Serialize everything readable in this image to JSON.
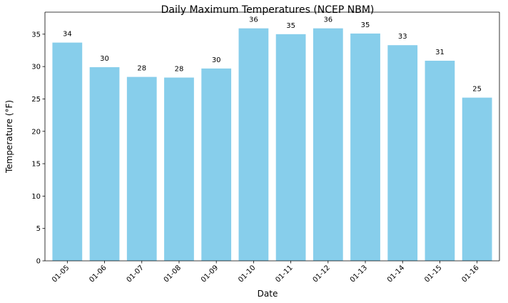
{
  "chart_data": {
    "type": "bar",
    "title": "Daily Maximum Temperatures (NCEP NBM)",
    "x_label": "Date",
    "y_label": "Temperature (°F)",
    "categories": [
      "01-05",
      "01-06",
      "01-07",
      "01-08",
      "01-09",
      "01-10",
      "01-11",
      "01-12",
      "01-13",
      "01-14",
      "01-15",
      "01-16"
    ],
    "values": [
      33.7,
      29.9,
      28.4,
      28.3,
      29.7,
      35.9,
      35.0,
      35.9,
      35.1,
      33.3,
      30.9,
      25.2
    ],
    "value_labels": [
      "34",
      "30",
      "28",
      "28",
      "30",
      "36",
      "35",
      "36",
      "35",
      "33",
      "31",
      "25"
    ],
    "color": "#87ceeb",
    "ylim": [
      0,
      38.4
    ],
    "yticks": [
      0,
      5,
      10,
      15,
      20,
      25,
      30,
      35
    ],
    "grid": false
  }
}
